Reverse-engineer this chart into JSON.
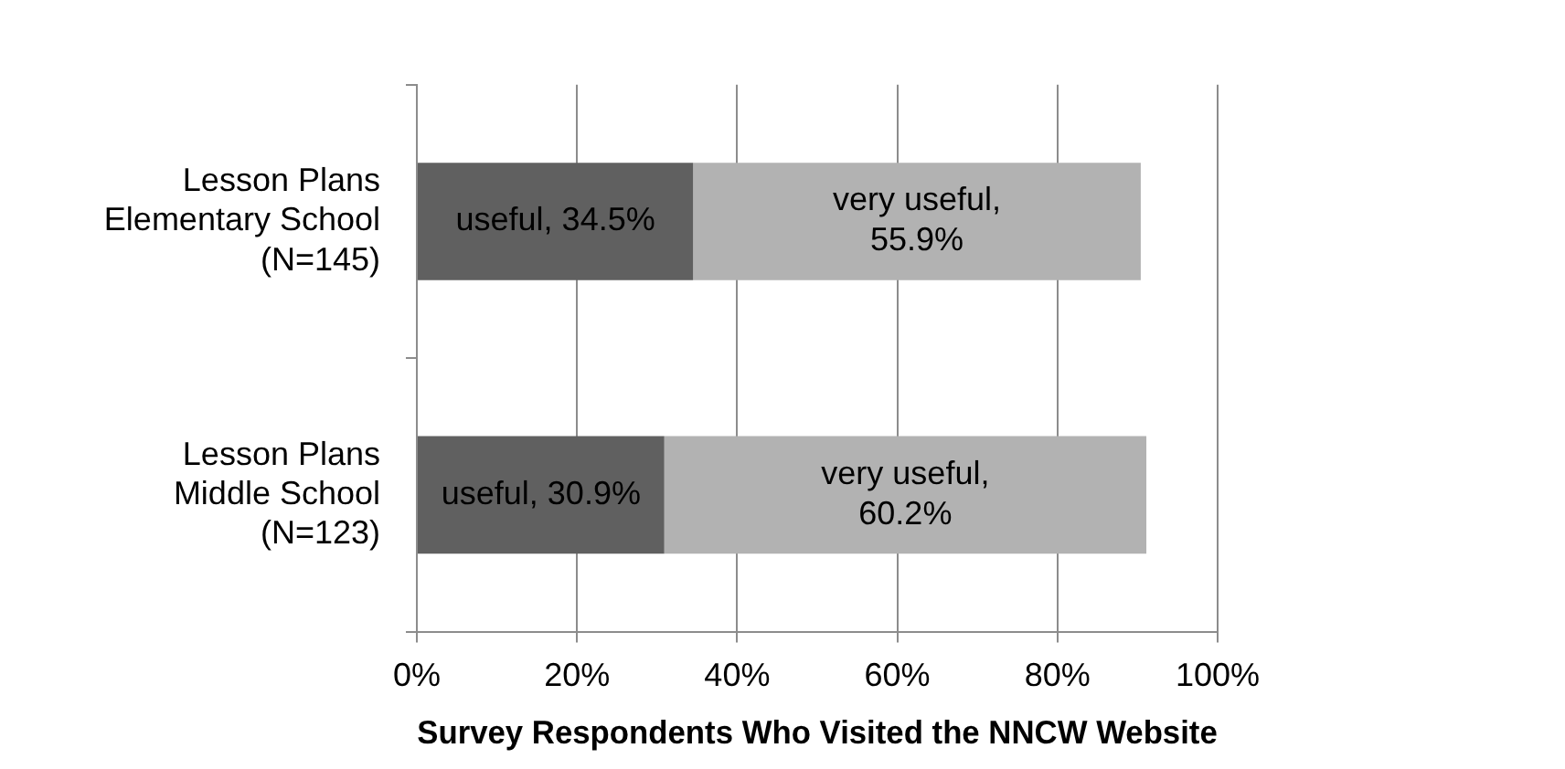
{
  "chart_data": {
    "type": "bar",
    "orientation": "horizontal",
    "stacked": true,
    "xlabel": "Survey Respondents Who Visited the NNCW Website",
    "categories": [
      "Lesson Plans\nElementary School\n(N=145)",
      "Lesson Plans\nMiddle School\n(N=123)"
    ],
    "series": [
      {
        "color": "#606060",
        "values": [
          34.5,
          30.9
        ],
        "value_labels": [
          "useful, 34.5%",
          "useful, 30.9%"
        ]
      },
      {
        "color": "#b2b2b2",
        "values": [
          55.9,
          60.2
        ],
        "value_labels": [
          "very useful,\n55.9%",
          "very useful,\n60.2%"
        ]
      }
    ],
    "xlim": [
      0,
      100
    ],
    "xticks": [
      {
        "value": 0,
        "label": "0%"
      },
      {
        "value": 20,
        "label": "20%"
      },
      {
        "value": 40,
        "label": "40%"
      },
      {
        "value": 60,
        "label": "60%"
      },
      {
        "value": 80,
        "label": "80%"
      },
      {
        "value": 100,
        "label": "100%"
      }
    ],
    "grid": "x",
    "legend": false
  }
}
